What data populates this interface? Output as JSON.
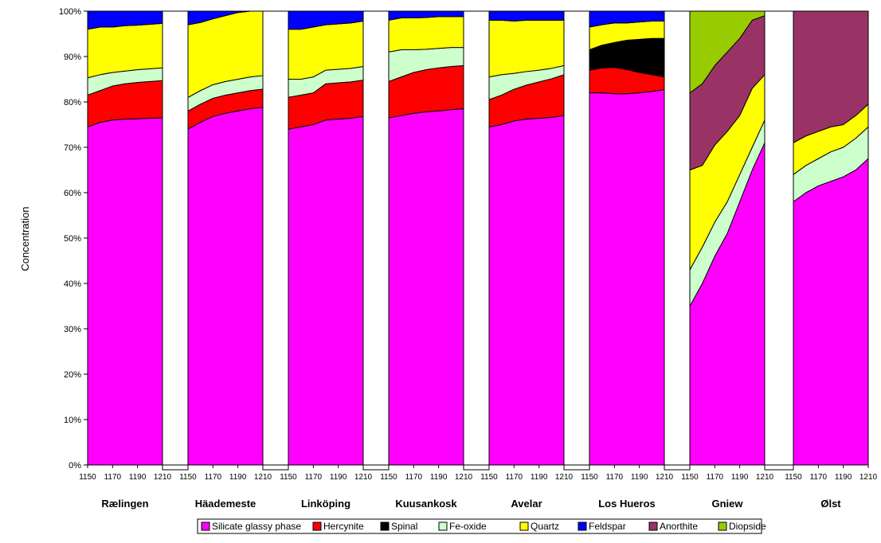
{
  "chart_data": {
    "type": "area",
    "subtype": "stacked-100-percent-panels",
    "ylabel": "Concentration",
    "yticks": [
      "0%",
      "10%",
      "20%",
      "30%",
      "40%",
      "50%",
      "60%",
      "70%",
      "80%",
      "90%",
      "100%"
    ],
    "ylim": [
      0,
      100
    ],
    "x": [
      1150,
      1170,
      1190,
      1210
    ],
    "x_tick_labels": [
      "1150",
      "1170",
      "1190",
      "1210"
    ],
    "legend_position": "bottom",
    "grid": false,
    "series": [
      {
        "name": "Silicate glassy phase",
        "color": "#ff00ff"
      },
      {
        "name": "Hercynite",
        "color": "#ff0000"
      },
      {
        "name": "Spinal",
        "color": "#000000"
      },
      {
        "name": "Fe-oxide",
        "color": "#ccffcc"
      },
      {
        "name": "Quartz",
        "color": "#ffff00"
      },
      {
        "name": "Feldspar",
        "color": "#0000ff"
      },
      {
        "name": "Anorthite",
        "color": "#993366"
      },
      {
        "name": "Diopside",
        "color": "#99cc00"
      }
    ],
    "panels": [
      {
        "site": "Rælingen",
        "x": [
          1150,
          1160,
          1170,
          1180,
          1190,
          1200,
          1210
        ],
        "values": [
          [
            74.5,
            75.5,
            76.0,
            76.2,
            76.3,
            76.4,
            76.5
          ],
          [
            7.0,
            7.0,
            7.5,
            7.8,
            8.0,
            8.1,
            8.2
          ],
          [
            0,
            0,
            0,
            0,
            0,
            0,
            0
          ],
          [
            3.8,
            3.5,
            3.0,
            2.8,
            2.8,
            2.8,
            2.8
          ],
          [
            10.7,
            10.5,
            10.0,
            10.0,
            9.8,
            9.8,
            9.8
          ],
          [
            4.0,
            3.5,
            3.5,
            3.2,
            3.1,
            2.9,
            2.7
          ],
          [
            0,
            0,
            0,
            0,
            0,
            0,
            0
          ],
          [
            0,
            0,
            0,
            0,
            0,
            0,
            0
          ]
        ]
      },
      {
        "site": "Häademeste",
        "x": [
          1150,
          1160,
          1170,
          1180,
          1190,
          1200,
          1210
        ],
        "values": [
          [
            74.0,
            75.5,
            76.8,
            77.5,
            78.0,
            78.5,
            78.8
          ],
          [
            4.0,
            4.0,
            4.0,
            4.0,
            4.0,
            4.0,
            4.0
          ],
          [
            0,
            0,
            0,
            0,
            0,
            0,
            0
          ],
          [
            3.0,
            3.0,
            3.0,
            3.0,
            3.0,
            3.0,
            3.0
          ],
          [
            16.0,
            15.0,
            14.5,
            14.5,
            14.7,
            14.5,
            14.2
          ],
          [
            3.0,
            2.5,
            1.7,
            1.0,
            0.3,
            0.0,
            0.0
          ],
          [
            0,
            0,
            0,
            0,
            0,
            0,
            0
          ],
          [
            0,
            0,
            0,
            0,
            0,
            0,
            0
          ]
        ]
      },
      {
        "site": "Linköping",
        "x": [
          1150,
          1160,
          1170,
          1180,
          1190,
          1200,
          1210
        ],
        "values": [
          [
            74.0,
            74.5,
            75.0,
            76.0,
            76.2,
            76.4,
            76.8
          ],
          [
            7.0,
            7.0,
            7.0,
            8.0,
            8.0,
            8.0,
            8.0
          ],
          [
            0,
            0,
            0,
            0,
            0,
            0,
            0
          ],
          [
            4.0,
            3.5,
            3.5,
            3.0,
            3.0,
            3.0,
            3.0
          ],
          [
            11.0,
            11.0,
            11.0,
            10.0,
            10.0,
            10.0,
            10.0
          ],
          [
            4.0,
            4.0,
            3.5,
            3.0,
            2.8,
            2.6,
            2.2
          ],
          [
            0,
            0,
            0,
            0,
            0,
            0,
            0
          ],
          [
            0,
            0,
            0,
            0,
            0,
            0,
            0
          ]
        ]
      },
      {
        "site": "Kuusankosk",
        "x": [
          1150,
          1160,
          1170,
          1180,
          1190,
          1200,
          1210
        ],
        "values": [
          [
            76.5,
            77.0,
            77.5,
            77.8,
            78.0,
            78.3,
            78.5
          ],
          [
            8.0,
            8.5,
            9.0,
            9.3,
            9.5,
            9.5,
            9.5
          ],
          [
            0,
            0,
            0,
            0,
            0,
            0,
            0
          ],
          [
            6.5,
            6.0,
            5.0,
            4.5,
            4.3,
            4.2,
            4.0
          ],
          [
            7.0,
            7.0,
            7.0,
            7.0,
            7.0,
            6.8,
            6.8
          ],
          [
            2.0,
            1.5,
            1.5,
            1.4,
            1.2,
            1.2,
            1.2
          ],
          [
            0,
            0,
            0,
            0,
            0,
            0,
            0
          ],
          [
            0,
            0,
            0,
            0,
            0,
            0,
            0
          ]
        ]
      },
      {
        "site": "Avelar",
        "x": [
          1150,
          1160,
          1170,
          1180,
          1190,
          1200,
          1210
        ],
        "values": [
          [
            74.5,
            75.0,
            75.8,
            76.2,
            76.4,
            76.6,
            77.0
          ],
          [
            6.0,
            6.5,
            7.0,
            7.5,
            8.0,
            8.5,
            9.0
          ],
          [
            0,
            0,
            0,
            0,
            0,
            0,
            0
          ],
          [
            5.0,
            4.5,
            3.5,
            3.0,
            2.6,
            2.3,
            2.0
          ],
          [
            12.5,
            12.0,
            11.5,
            11.3,
            11.0,
            10.6,
            10.0
          ],
          [
            2.0,
            2.0,
            2.2,
            2.0,
            2.0,
            2.0,
            2.0
          ],
          [
            0,
            0,
            0,
            0,
            0,
            0,
            0
          ],
          [
            0,
            0,
            0,
            0,
            0,
            0,
            0
          ]
        ]
      },
      {
        "site": "Los Hueros",
        "x": [
          1150,
          1160,
          1170,
          1180,
          1190,
          1200,
          1210
        ],
        "values": [
          [
            82.0,
            82.0,
            81.8,
            81.8,
            82.0,
            82.3,
            82.7
          ],
          [
            5.0,
            5.5,
            5.8,
            5.3,
            4.5,
            3.7,
            2.8
          ],
          [
            4.5,
            5.0,
            5.5,
            6.5,
            7.3,
            8.0,
            8.5
          ],
          [
            0,
            0,
            0,
            0,
            0,
            0,
            0
          ],
          [
            5.0,
            4.5,
            4.3,
            3.8,
            3.8,
            3.8,
            3.8
          ],
          [
            3.5,
            3.0,
            2.6,
            2.6,
            2.4,
            2.2,
            2.2
          ],
          [
            0,
            0,
            0,
            0,
            0,
            0,
            0
          ],
          [
            0,
            0,
            0,
            0,
            0,
            0,
            0
          ]
        ]
      },
      {
        "site": "Gniew",
        "x": [
          1150,
          1160,
          1170,
          1180,
          1190,
          1200,
          1210
        ],
        "values": [
          [
            35.0,
            40.0,
            46.0,
            51.0,
            58.0,
            65.0,
            71.0
          ],
          [
            0,
            0,
            0,
            0,
            0,
            0,
            0
          ],
          [
            0,
            0,
            0,
            0,
            0,
            0,
            0
          ],
          [
            8.0,
            8.0,
            7.5,
            7.0,
            6.0,
            5.0,
            5.0
          ],
          [
            22.0,
            18.0,
            17.0,
            15.5,
            13.0,
            13.0,
            10.0
          ],
          [
            0,
            0,
            0,
            0,
            0,
            0,
            0
          ],
          [
            17.0,
            18.0,
            17.5,
            17.5,
            17.0,
            15.0,
            13.0
          ],
          [
            18.0,
            16.0,
            12.0,
            9.0,
            6.0,
            2.0,
            1.0
          ]
        ]
      },
      {
        "site": "Ølst",
        "x": [
          1150,
          1160,
          1170,
          1180,
          1190,
          1200,
          1210
        ],
        "values": [
          [
            58.0,
            60.0,
            61.5,
            62.5,
            63.5,
            65.0,
            67.5
          ],
          [
            0,
            0,
            0,
            0,
            0,
            0,
            0
          ],
          [
            0,
            0,
            0,
            0,
            0,
            0,
            0
          ],
          [
            6.0,
            6.0,
            6.0,
            6.5,
            6.5,
            7.0,
            7.0
          ],
          [
            7.0,
            6.5,
            6.0,
            5.5,
            5.0,
            5.0,
            5.0
          ],
          [
            0,
            0,
            0,
            0,
            0,
            0,
            0
          ],
          [
            29.0,
            27.5,
            26.5,
            25.5,
            25.0,
            23.0,
            20.5
          ],
          [
            0,
            0,
            0,
            0,
            0,
            0,
            0
          ]
        ]
      }
    ]
  }
}
